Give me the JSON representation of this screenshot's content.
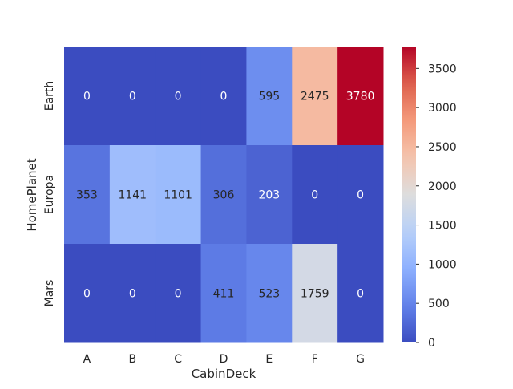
{
  "chart_data": {
    "type": "heatmap",
    "xlabel": "CabinDeck",
    "ylabel": "HomePlanet",
    "x_categories": [
      "A",
      "B",
      "C",
      "D",
      "E",
      "F",
      "G"
    ],
    "y_categories": [
      "Earth",
      "Europa",
      "Mars"
    ],
    "values": [
      [
        0,
        0,
        0,
        0,
        595,
        2475,
        3780
      ],
      [
        353,
        1141,
        1101,
        306,
        203,
        0,
        0
      ],
      [
        0,
        0,
        0,
        411,
        523,
        1759,
        0
      ]
    ],
    "colormap": "coolwarm",
    "value_range": [
      0,
      3780
    ],
    "colorbar": {
      "ticks": [
        0,
        500,
        1000,
        1500,
        2000,
        2500,
        3000,
        3500
      ]
    },
    "annotations": true,
    "grid": false,
    "colorbar_position": "right"
  }
}
